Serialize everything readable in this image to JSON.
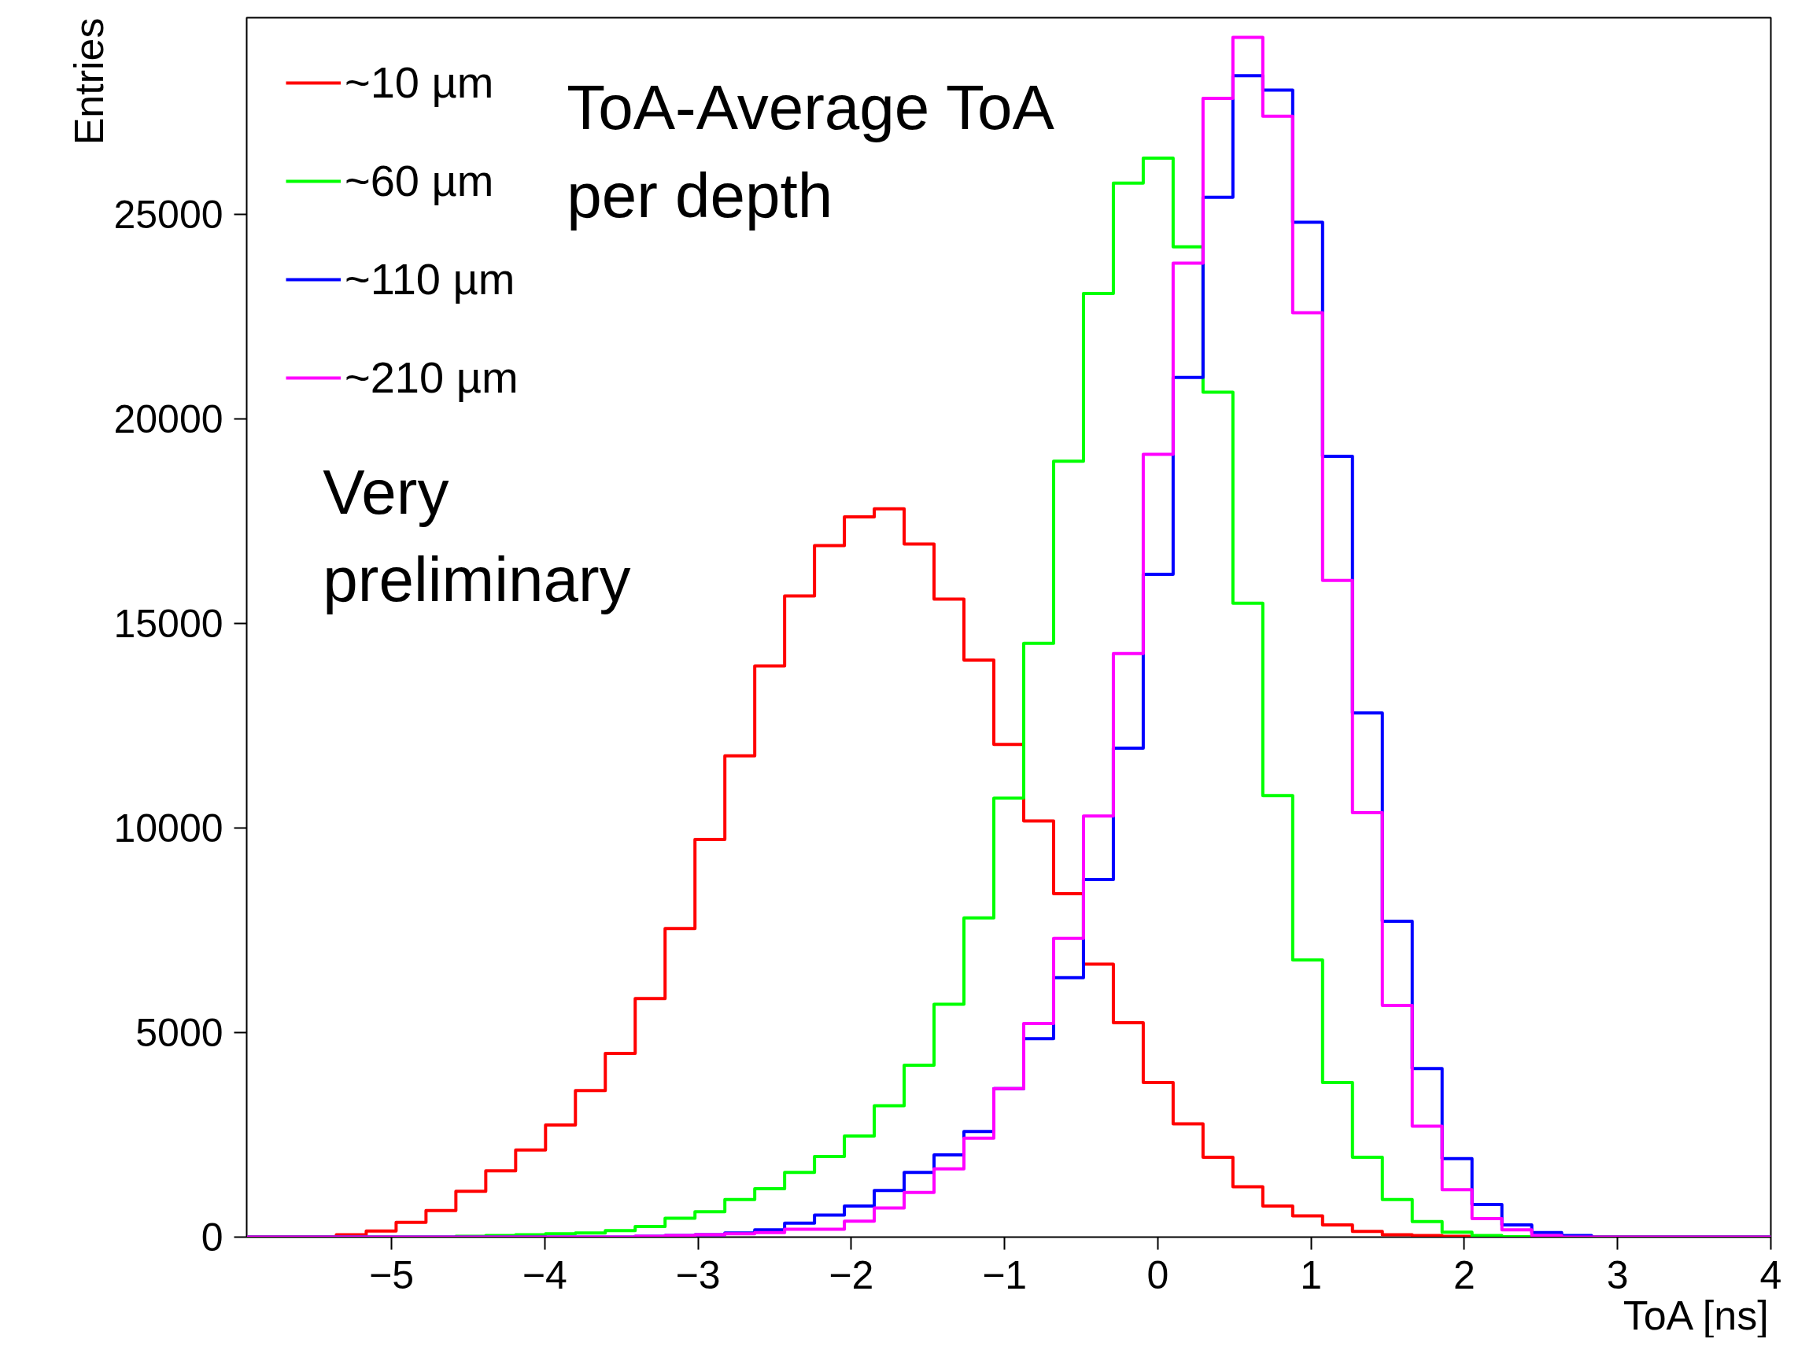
{
  "chart_data": {
    "type": "histogram",
    "xlabel": "ToA [ns]",
    "ylabel": "Entries",
    "annotations": [
      "ToA-Average ToA\nper depth",
      "Very\npreliminary"
    ],
    "bins": [
      -5.945,
      -5.75,
      -5.555,
      -5.36,
      -5.165,
      -4.97,
      -4.775,
      -4.58,
      -4.385,
      -4.19,
      -3.995,
      -3.8,
      -3.605,
      -3.41,
      -3.215,
      -3.02,
      -2.825,
      -2.63,
      -2.435,
      -2.24,
      -2.045,
      -1.85,
      -1.655,
      -1.46,
      -1.265,
      -1.07,
      -0.875,
      -0.68,
      -0.485,
      -0.29,
      -0.095,
      0.1,
      0.295,
      0.49,
      0.685,
      0.88,
      1.075,
      1.27,
      1.465,
      1.66,
      1.855,
      2.05,
      2.245,
      2.44,
      2.635,
      2.83,
      3.025,
      3.22,
      3.415,
      3.61,
      3.805,
      4.0
    ],
    "series": [
      {
        "name": "~10 µm",
        "color": "#ff0000",
        "values": [
          0,
          0,
          0,
          60,
          150,
          360,
          650,
          1120,
          1620,
          2130,
          2740,
          3580,
          4490,
          5830,
          7540,
          9720,
          11760,
          13960,
          15670,
          16900,
          17600,
          17800,
          16940,
          15590,
          14100,
          12040,
          10170,
          8390,
          6670,
          5240,
          3780,
          2770,
          1950,
          1230,
          760,
          520,
          300,
          140,
          60,
          40,
          20,
          20,
          10,
          0,
          0,
          0,
          0,
          0,
          0,
          0,
          0
        ]
      },
      {
        "name": "~60 µm",
        "color": "#00ff00",
        "values": [
          0,
          0,
          0,
          0,
          0,
          0,
          0,
          20,
          40,
          60,
          80,
          100,
          160,
          260,
          460,
          620,
          920,
          1180,
          1580,
          1970,
          2470,
          3210,
          4200,
          5690,
          7800,
          10730,
          14510,
          18960,
          23060,
          25760,
          26370,
          24200,
          20650,
          15490,
          10790,
          6770,
          3780,
          1950,
          920,
          380,
          120,
          40,
          10,
          0,
          0,
          0,
          0,
          0,
          0,
          0,
          0
        ]
      },
      {
        "name": "~110 µm",
        "color": "#0000ff",
        "values": [
          0,
          0,
          0,
          0,
          0,
          0,
          0,
          0,
          0,
          0,
          0,
          0,
          0,
          20,
          40,
          60,
          100,
          180,
          340,
          540,
          760,
          1140,
          1580,
          2010,
          2580,
          3630,
          4850,
          6340,
          8740,
          11950,
          16200,
          21010,
          25410,
          28380,
          28030,
          24800,
          19080,
          12810,
          7720,
          4120,
          1920,
          800,
          300,
          110,
          40,
          0,
          0,
          0,
          0,
          0,
          0
        ]
      },
      {
        "name": "~210 µm",
        "color": "#ff00ff",
        "values": [
          0,
          0,
          0,
          0,
          0,
          0,
          0,
          0,
          0,
          0,
          0,
          0,
          0,
          20,
          40,
          60,
          80,
          110,
          190,
          190,
          390,
          710,
          1090,
          1670,
          2420,
          3630,
          5220,
          7300,
          10290,
          14260,
          19130,
          23800,
          27830,
          29320,
          27390,
          22590,
          16050,
          10370,
          5660,
          2710,
          1160,
          450,
          180,
          40,
          0,
          0,
          0,
          0,
          0,
          0,
          0
        ]
      }
    ],
    "xlim": [
      -5.945,
      4
    ],
    "ylim": [
      0,
      29800
    ],
    "xticks": [
      -5,
      -4,
      -3,
      -2,
      -1,
      0,
      1,
      2,
      3,
      4
    ],
    "yticks": [
      0,
      5000,
      10000,
      15000,
      20000,
      25000
    ],
    "legend": "top left",
    "grid": false
  }
}
